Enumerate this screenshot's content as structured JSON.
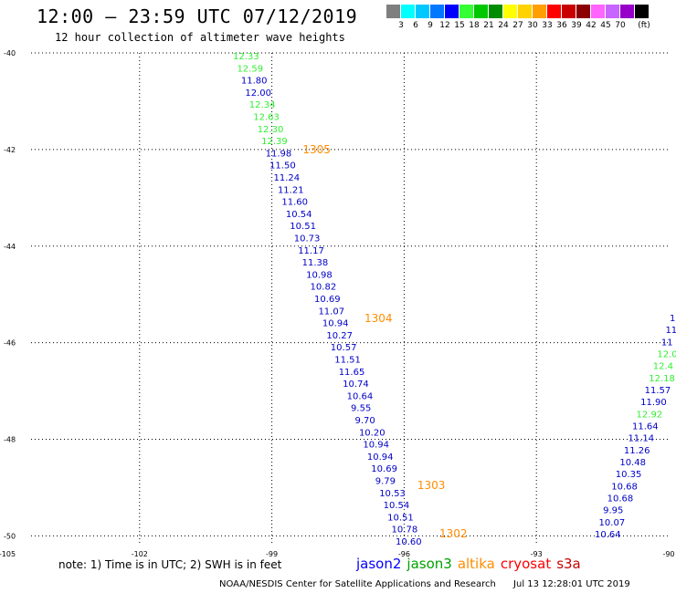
{
  "title": "12:00 – 23:59 UTC 07/12/2019",
  "subtitle": "12 hour collection of altimeter wave heights",
  "legend": {
    "unit": "(ft)",
    "swatches": [
      {
        "color": "#7f7f7f",
        "label": ""
      },
      {
        "color": "#00ffff",
        "label": "3"
      },
      {
        "color": "#00c8ff",
        "label": "6"
      },
      {
        "color": "#0078ff",
        "label": "9"
      },
      {
        "color": "#0000ff",
        "label": "12"
      },
      {
        "color": "#33ff33",
        "label": "15"
      },
      {
        "color": "#00c800",
        "label": "18"
      },
      {
        "color": "#008c00",
        "label": "21"
      },
      {
        "color": "#ffff00",
        "label": "24"
      },
      {
        "color": "#ffd200",
        "label": "27"
      },
      {
        "color": "#ffa000",
        "label": "30"
      },
      {
        "color": "#ff0000",
        "label": "33"
      },
      {
        "color": "#c80000",
        "label": "36"
      },
      {
        "color": "#8b0000",
        "label": "39"
      },
      {
        "color": "#ff64ff",
        "label": "42"
      },
      {
        "color": "#c864ff",
        "label": "45"
      },
      {
        "color": "#9600c8",
        "label": "70"
      },
      {
        "color": "#000000",
        "label": ""
      }
    ]
  },
  "map": {
    "lon_range": [
      -105,
      -90
    ],
    "lat_range": [
      -50.2,
      -40
    ],
    "lon_ticks": [
      -105,
      -102,
      -99,
      -96,
      -93,
      -90
    ],
    "lat_ticks": [
      -40,
      -42,
      -44,
      -46,
      -48,
      -50
    ],
    "track1": [
      {
        "v": "12.33",
        "c": "#33ee33"
      },
      {
        "v": "12.59",
        "c": "#33ee33"
      },
      {
        "v": "11.80",
        "c": "#0000c8"
      },
      {
        "v": "12.00",
        "c": "#0000c8"
      },
      {
        "v": "12.34",
        "c": "#33ee33"
      },
      {
        "v": "12.63",
        "c": "#33ee33"
      },
      {
        "v": "12.30",
        "c": "#33ee33"
      },
      {
        "v": "12.39",
        "c": "#33ee33"
      },
      {
        "v": "11.98",
        "c": "#0000c8"
      },
      {
        "v": "11.50",
        "c": "#0000c8"
      },
      {
        "v": "11.24",
        "c": "#0000c8"
      },
      {
        "v": "11.21",
        "c": "#0000c8"
      },
      {
        "v": "11.60",
        "c": "#0000c8"
      },
      {
        "v": "10.54",
        "c": "#0000c8"
      },
      {
        "v": "10.51",
        "c": "#0000c8"
      },
      {
        "v": "10.73",
        "c": "#0000c8"
      },
      {
        "v": "11.17",
        "c": "#0000c8"
      },
      {
        "v": "11.38",
        "c": "#0000c8"
      },
      {
        "v": "10.98",
        "c": "#0000c8"
      },
      {
        "v": "10.82",
        "c": "#0000c8"
      },
      {
        "v": "10.69",
        "c": "#0000c8"
      },
      {
        "v": "11.07",
        "c": "#0000c8"
      },
      {
        "v": "10.94",
        "c": "#0000c8"
      },
      {
        "v": "10.27",
        "c": "#0000c8"
      },
      {
        "v": "10.57",
        "c": "#0000c8"
      },
      {
        "v": "11.51",
        "c": "#0000c8"
      },
      {
        "v": "11.65",
        "c": "#0000c8"
      },
      {
        "v": "10.74",
        "c": "#0000c8"
      },
      {
        "v": "10.64",
        "c": "#0000c8"
      },
      {
        "v": "9.55",
        "c": "#0000c8"
      },
      {
        "v": "9.70",
        "c": "#0000c8"
      },
      {
        "v": "10.20",
        "c": "#0000c8"
      },
      {
        "v": "10.94",
        "c": "#0000c8"
      },
      {
        "v": "10.94",
        "c": "#0000c8"
      },
      {
        "v": "10.69",
        "c": "#0000c8"
      },
      {
        "v": "9.79",
        "c": "#0000c8"
      },
      {
        "v": "10.53",
        "c": "#0000c8"
      },
      {
        "v": "10.54",
        "c": "#0000c8"
      },
      {
        "v": "10.51",
        "c": "#0000c8"
      },
      {
        "v": "10.78",
        "c": "#0000c8"
      },
      {
        "v": "10.60",
        "c": "#0000c8"
      }
    ],
    "track2": [
      {
        "v": "1",
        "c": "#0000c8"
      },
      {
        "v": "11",
        "c": "#0000c8"
      },
      {
        "v": "11",
        "c": "#0000c8"
      },
      {
        "v": "12.0",
        "c": "#33ee33"
      },
      {
        "v": "12.4",
        "c": "#33ee33"
      },
      {
        "v": "12.18",
        "c": "#33ee33"
      },
      {
        "v": "11.57",
        "c": "#0000c8"
      },
      {
        "v": "11.90",
        "c": "#0000c8"
      },
      {
        "v": "12.92",
        "c": "#33ee33"
      },
      {
        "v": "11.64",
        "c": "#0000c8"
      },
      {
        "v": "11.14",
        "c": "#0000c8"
      },
      {
        "v": "11.26",
        "c": "#0000c8"
      },
      {
        "v": "10.48",
        "c": "#0000c8"
      },
      {
        "v": "10.35",
        "c": "#0000c8"
      },
      {
        "v": "10.68",
        "c": "#0000c8"
      },
      {
        "v": "10.68",
        "c": "#0000c8"
      },
      {
        "v": "9.95",
        "c": "#0000c8"
      },
      {
        "v": "10.07",
        "c": "#0000c8"
      },
      {
        "v": "10.64",
        "c": "#0000c8"
      }
    ],
    "pass_times": [
      {
        "t": "1305",
        "lon": -98.3,
        "lat": -42.0
      },
      {
        "t": "1304",
        "lon": -96.9,
        "lat": -45.5
      },
      {
        "t": "1303",
        "lon": -95.7,
        "lat": -48.95
      },
      {
        "t": "1302",
        "lon": -95.2,
        "lat": -49.95
      }
    ],
    "pass_color": "#ff8c00"
  },
  "note": "note: 1) Time is in UTC; 2) SWH is in feet",
  "missions": [
    {
      "name": "jason2",
      "color": "#0000ff"
    },
    {
      "name": "jason3",
      "color": "#00a000"
    },
    {
      "name": "altika",
      "color": "#ff8c00"
    },
    {
      "name": "cryosat",
      "color": "#ff0000"
    },
    {
      "name": "s3a",
      "color": "#c80000"
    }
  ],
  "credit": {
    "org": "NOAA/NESDIS Center for Satellite Applications and Research",
    "timestamp": "Jul 13 12:28:01 UTC 2019"
  }
}
